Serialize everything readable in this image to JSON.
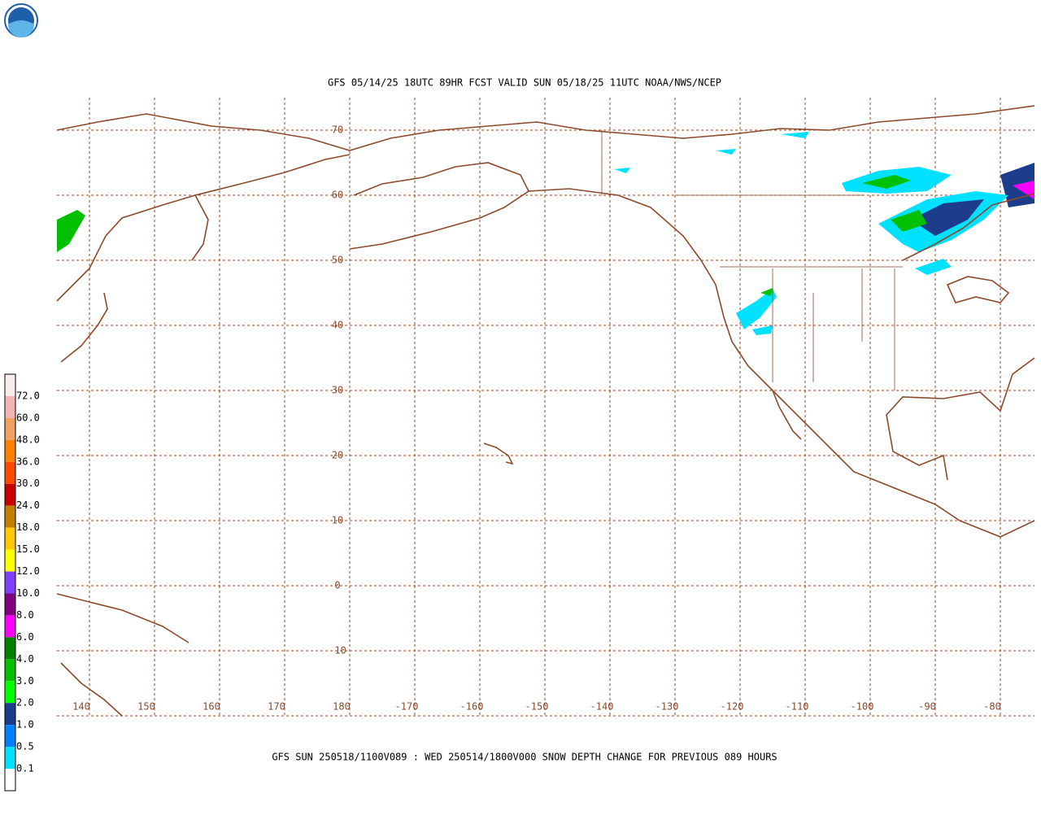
{
  "header": {
    "title": "GFS 05/14/25 18UTC 89HR FCST VALID SUN 05/18/25 11UTC NOAA/NWS/NCEP"
  },
  "footer": {
    "caption": "GFS SUN 250518/1100V089 : WED 250514/1800V000 SNOW DEPTH CHANGE FOR PREVIOUS 089 HOURS"
  },
  "map": {
    "lat_labels": [
      "70",
      "60",
      "50",
      "40",
      "30",
      "20",
      "10",
      "0",
      "-10"
    ],
    "lon_labels": [
      "140",
      "150",
      "160",
      "170",
      "180",
      "-170",
      "-160",
      "-150",
      "-140",
      "-130",
      "-120",
      "-110",
      "-100",
      "-90",
      "-80"
    ],
    "line_color": "#8c4a2a"
  },
  "legend": {
    "labels": [
      "72.0",
      "60.0",
      "48.0",
      "36.0",
      "30.0",
      "24.0",
      "18.0",
      "15.0",
      "12.0",
      "10.0",
      "8.0",
      "6.0",
      "4.0",
      "3.0",
      "2.0",
      "1.0",
      "0.5",
      "0.1"
    ],
    "colors": [
      "#f8ecec",
      "#f4b4b4",
      "#f0a060",
      "#ff8000",
      "#ff4800",
      "#c80000",
      "#c08000",
      "#ffc800",
      "#ffff00",
      "#8040ff",
      "#800080",
      "#ff00ff",
      "#008000",
      "#00c000",
      "#00ff00",
      "#1e3c8c",
      "#0080ff",
      "#00e0ff",
      "#ffffff"
    ]
  }
}
